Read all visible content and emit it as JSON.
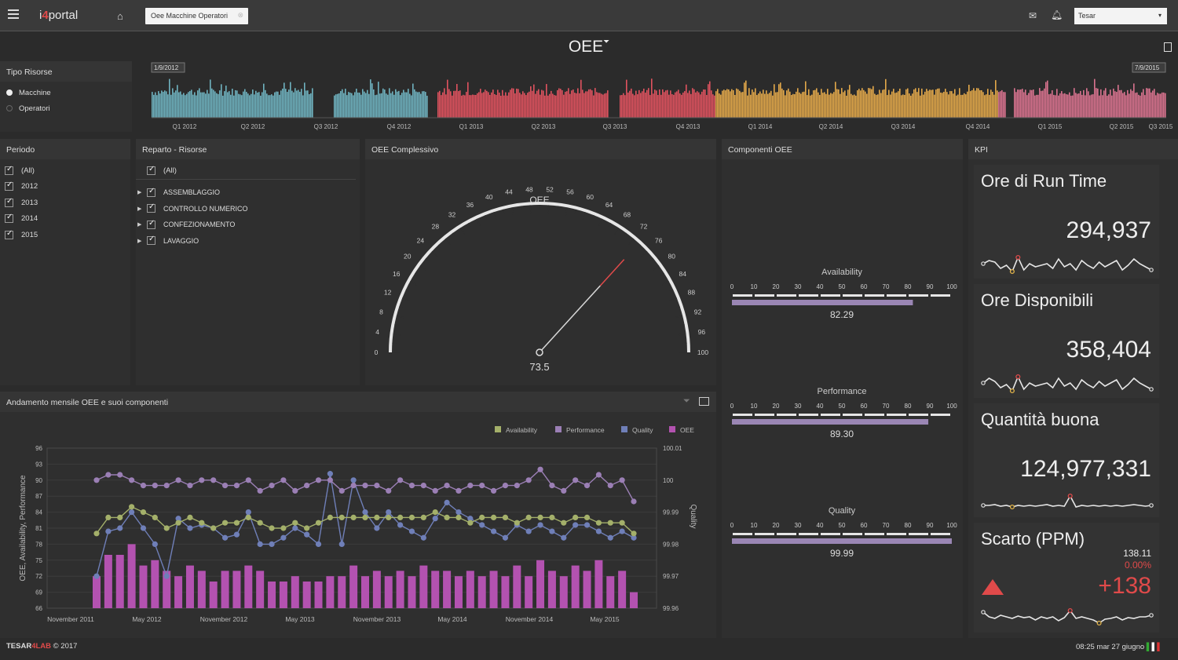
{
  "header": {
    "app_name_prefix": "i",
    "app_name_num": "4",
    "app_name_suffix": "portal",
    "tab_label": "Oee Macchine Operatori",
    "user_select": "Tesar"
  },
  "page_title": "OEE",
  "tipo_risorse": {
    "title": "Tipo Risorse",
    "options": [
      "Macchine",
      "Operatori"
    ],
    "selected": "Macchine"
  },
  "timeline": {
    "start_label": "1/9/2012",
    "end_label": "7/9/2015",
    "quarters": [
      "Q1 2012",
      "Q2 2012",
      "Q3 2012",
      "Q4 2012",
      "Q1 2013",
      "Q2 2013",
      "Q3 2013",
      "Q4 2013",
      "Q1 2014",
      "Q2 2014",
      "Q3 2014",
      "Q4 2014",
      "Q1 2015",
      "Q2 2015",
      "Q3 2015"
    ],
    "year_colors": [
      "#6fb3c0",
      "#e0535f",
      "#e3a94a",
      "#d9738f"
    ]
  },
  "periodo": {
    "title": "Periodo",
    "items": [
      "(All)",
      "2012",
      "2013",
      "2014",
      "2015"
    ]
  },
  "reparto": {
    "title": "Reparto - Risorse",
    "all": "(All)",
    "items": [
      "ASSEMBLAGGIO",
      "CONTROLLO NUMERICO",
      "CONFEZIONAMENTO",
      "LAVAGGIO"
    ]
  },
  "gauge": {
    "title": "OEE Complessivo",
    "label": "OEE",
    "value": 73.5,
    "value_text": "73.5",
    "ticks": [
      "0",
      "4",
      "8",
      "12",
      "16",
      "20",
      "24",
      "28",
      "32",
      "36",
      "40",
      "44",
      "48",
      "52",
      "56",
      "60",
      "64",
      "68",
      "72",
      "76",
      "80",
      "84",
      "88",
      "92",
      "96",
      "100"
    ]
  },
  "componenti": {
    "title": "Componenti OEE",
    "scale": [
      "0",
      "10",
      "20",
      "30",
      "40",
      "50",
      "60",
      "70",
      "80",
      "90",
      "100"
    ],
    "bars": [
      {
        "name": "Availability",
        "value": 82.29,
        "text": "82.29"
      },
      {
        "name": "Performance",
        "value": 89.3,
        "text": "89.30"
      },
      {
        "name": "Quality",
        "value": 99.99,
        "text": "99.99"
      }
    ]
  },
  "kpi": {
    "title": "KPI",
    "cards": [
      {
        "title": "Ore di Run Time",
        "value": "294,937"
      },
      {
        "title": "Ore Disponibili",
        "value": "358,404"
      },
      {
        "title": "Quantità buona",
        "value": "124,977,331"
      },
      {
        "title": "Scarto (PPM)",
        "value": "+138",
        "sub_value": "138.11",
        "sub_pct": "0.00%"
      }
    ],
    "accent": "#e04a4a"
  },
  "trend": {
    "title": "Andamento mensile OEE e suoi componenti"
  },
  "chart_data": {
    "type": "bar",
    "title": "Andamento mensile OEE e suoi componenti",
    "ylabel": "OEE, Availability, Performance",
    "y2label": "Quality",
    "ylim": [
      66,
      96
    ],
    "yticks": [
      "96",
      "93",
      "90",
      "87",
      "84",
      "81",
      "78",
      "75",
      "72",
      "69",
      "66"
    ],
    "y2lim": [
      99.96,
      100.01
    ],
    "y2ticks": [
      "100.01",
      "100",
      "99.99",
      "99.98",
      "99.97",
      "99.96"
    ],
    "xlabels": [
      "November 2011",
      "May 2012",
      "November 2012",
      "May 2013",
      "November 2013",
      "May 2014",
      "November 2014",
      "May 2015"
    ],
    "legend": [
      "Availability",
      "Performance",
      "Quality",
      "OEE"
    ],
    "colors": {
      "availability": "#a4b06a",
      "performance": "#9b7fb5",
      "quality": "#6f7fb8",
      "oee": "#b352b0"
    },
    "series": [
      {
        "name": "OEE",
        "values": [
          72,
          76,
          76,
          78,
          74,
          75,
          73,
          72,
          74,
          73,
          71,
          73,
          73,
          74,
          73,
          71,
          71,
          72,
          71,
          71,
          72,
          72,
          74,
          72,
          73,
          72,
          73,
          72,
          74,
          73,
          73,
          72,
          73,
          72,
          73,
          72,
          74,
          72,
          75,
          73,
          72,
          74,
          73,
          75,
          72,
          73,
          69
        ]
      },
      {
        "name": "Availability",
        "values": [
          80,
          83,
          83,
          85,
          84,
          83,
          81,
          82,
          83,
          82,
          81,
          82,
          82,
          83,
          82,
          81,
          81,
          82,
          81,
          82,
          83,
          83,
          83,
          83,
          83,
          83,
          83,
          83,
          83,
          84,
          83,
          83,
          82,
          83,
          83,
          83,
          82,
          83,
          83,
          83,
          82,
          83,
          83,
          82,
          82,
          82,
          80
        ]
      },
      {
        "name": "Performance",
        "values": [
          90,
          91,
          91,
          90,
          89,
          89,
          89,
          90,
          89,
          90,
          90,
          89,
          89,
          90,
          88,
          89,
          90,
          88,
          89,
          90,
          90,
          88,
          89,
          89,
          89,
          88,
          90,
          89,
          89,
          88,
          89,
          88,
          89,
          89,
          88,
          89,
          89,
          90,
          92,
          89,
          88,
          90,
          89,
          91,
          89,
          90,
          86
        ]
      },
      {
        "name": "Quality",
        "values": [
          99.97,
          99.984,
          99.985,
          99.99,
          99.985,
          99.98,
          99.97,
          99.988,
          99.985,
          99.986,
          99.985,
          99.982,
          99.983,
          99.99,
          99.98,
          99.98,
          99.982,
          99.985,
          99.983,
          99.98,
          100.002,
          99.98,
          100.0,
          99.99,
          99.985,
          99.99,
          99.986,
          99.984,
          99.982,
          99.988,
          99.993,
          99.99,
          99.988,
          99.986,
          99.984,
          99.982,
          99.986,
          99.984,
          99.986,
          99.984,
          99.982,
          99.986,
          99.986,
          99.984,
          99.982,
          99.984,
          99.982
        ]
      }
    ]
  }
}
